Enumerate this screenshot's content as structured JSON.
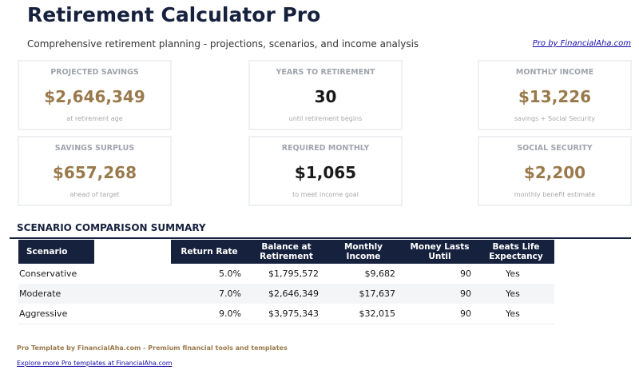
{
  "header": {
    "title": "Retirement Calculator Pro",
    "subtitle": "Comprehensive retirement planning - projections, scenarios, and income analysis",
    "pro_link": "Pro by FinancialAha.com"
  },
  "cards": [
    {
      "label": "PROJECTED SAVINGS",
      "value": "$2,646,349",
      "sub": "at retirement age"
    },
    {
      "label": "YEARS TO RETIREMENT",
      "value": "30",
      "sub": "until retirement begins"
    },
    {
      "label": "MONTHLY INCOME",
      "value": "$13,226",
      "sub": "savings + Social Security"
    },
    {
      "label": "SAVINGS SURPLUS",
      "value": "$657,268",
      "sub": "ahead of target"
    },
    {
      "label": "REQUIRED MONTHLY",
      "value": "$1,065",
      "sub": "to meet income goal"
    },
    {
      "label": "SOCIAL SECURITY",
      "value": "$2,200",
      "sub": "monthly benefit estimate"
    }
  ],
  "colors": {
    "navy": "#16213e",
    "gold": "#9a7a4c"
  },
  "scenarios": {
    "title": "SCENARIO COMPARISON SUMMARY",
    "columns": [
      "Scenario",
      "",
      "Return Rate",
      "Balance at Retirement",
      "Monthly Income",
      "Money Lasts Until",
      "Beats Life Expectancy"
    ],
    "rows": [
      [
        "Conservative",
        "",
        "5.0%",
        "$1,795,572",
        "$9,682",
        "90",
        "Yes"
      ],
      [
        "Moderate",
        "",
        "7.0%",
        "$2,646,349",
        "$17,637",
        "90",
        "Yes"
      ],
      [
        "Aggressive",
        "",
        "9.0%",
        "$3,975,343",
        "$32,015",
        "90",
        "Yes"
      ]
    ]
  },
  "footer": {
    "credit": "Pro Template by FinancialAha.com - Premium financial tools and templates",
    "link": "Explore more Pro templates at FinancialAha.com"
  }
}
